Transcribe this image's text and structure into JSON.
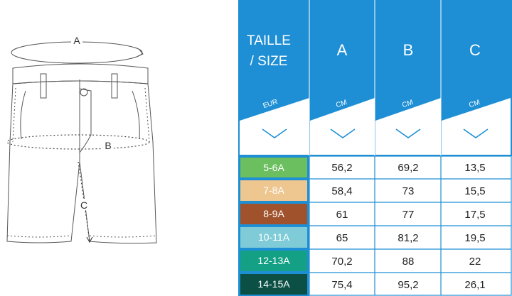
{
  "illustration": {
    "labels": {
      "a": "A",
      "b": "B",
      "c": "C"
    }
  },
  "table": {
    "header_bg": "#1e8fd5",
    "size_label_line1": "TAILLE",
    "size_label_line2": "/ SIZE",
    "columns": [
      {
        "letter": "A",
        "unit": "CM"
      },
      {
        "letter": "B",
        "unit": "CM"
      },
      {
        "letter": "C",
        "unit": "CM"
      }
    ],
    "size_unit": "EUR",
    "rows": [
      {
        "size": "5-6A",
        "color": "#6bbf5f",
        "values": [
          "56,2",
          "69,2",
          "13,5"
        ]
      },
      {
        "size": "7-8A",
        "color": "#edc690",
        "values": [
          "58,4",
          "73",
          "15,5"
        ]
      },
      {
        "size": "8-9A",
        "color": "#a0522d",
        "values": [
          "61",
          "77",
          "17,5"
        ]
      },
      {
        "size": "10-11A",
        "color": "#7fccd8",
        "values": [
          "65",
          "81,2",
          "19,5"
        ]
      },
      {
        "size": "12-13A",
        "color": "#14a085",
        "values": [
          "70,2",
          "88",
          "22"
        ]
      },
      {
        "size": "14-15A",
        "color": "#0c4f44",
        "values": [
          "75,4",
          "95,2",
          "26,1"
        ]
      }
    ]
  }
}
